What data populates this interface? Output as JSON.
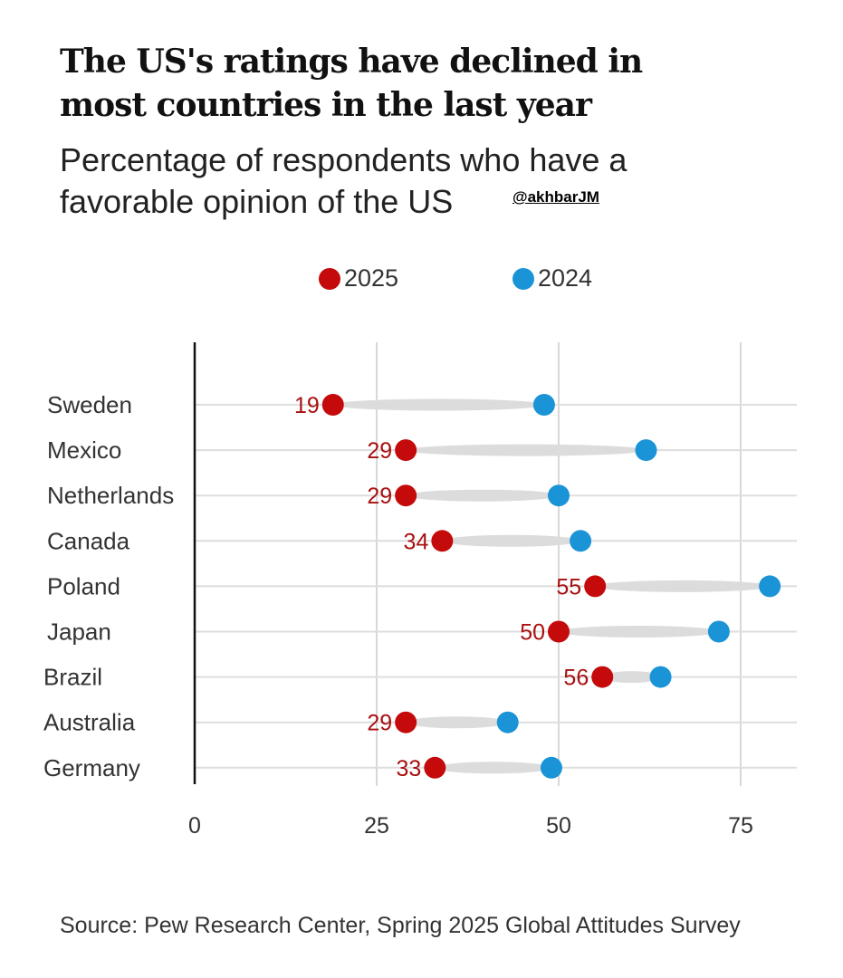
{
  "chart_data": {
    "type": "dumbbell",
    "title": "The US's ratings have declined in most countries in the last year",
    "subtitle": "Percentage of respondents who have a favorable opinion of the US",
    "categories": [
      "Sweden",
      "Mexico",
      "Netherlands",
      "Canada",
      "Poland",
      "Japan",
      "Brazil",
      "Australia",
      "Germany"
    ],
    "series": [
      {
        "name": "2025",
        "color": "#c40a0a",
        "values": [
          19,
          29,
          29,
          34,
          55,
          50,
          56,
          29,
          33
        ],
        "labeled": true
      },
      {
        "name": "2024",
        "color": "#1a94d6",
        "values": [
          48,
          62,
          50,
          53,
          79,
          72,
          64,
          43,
          49
        ],
        "labeled": false
      }
    ],
    "xlim": [
      0,
      83
    ],
    "xticks": [
      "0",
      "25",
      "50",
      "75"
    ],
    "xtick_values": [
      0,
      25,
      50,
      75
    ],
    "grid": true,
    "legend_position": "top",
    "connector_color": "#dcdcdc",
    "source": "Source: Pew Research Center, Spring 2025 Global Attitudes Survey"
  },
  "watermark": "@akhbarJM"
}
